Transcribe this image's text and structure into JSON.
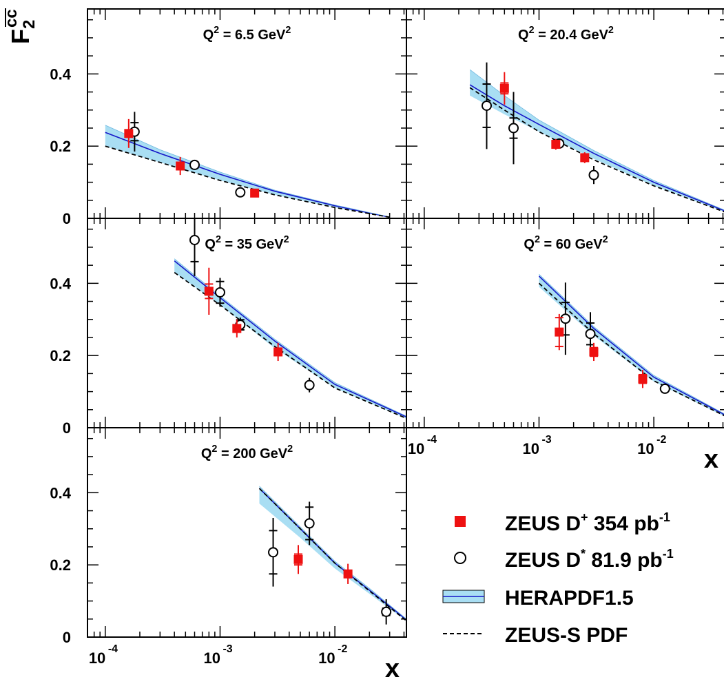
{
  "chart_data": {
    "type": "scatter",
    "x_scale": "log",
    "xlim": [
      7e-05,
      0.042
    ],
    "ylim": [
      0,
      0.58
    ],
    "ylabel_base": "F",
    "ylabel_sub": "2",
    "ylabel_sup": "cc",
    "xlabel": "x",
    "y_ticks": [
      {
        "value": 0,
        "label": "0"
      },
      {
        "value": 0.2,
        "label": "0.2"
      },
      {
        "value": 0.4,
        "label": "0.4"
      }
    ],
    "x_ticks": [
      {
        "value": 0.0001,
        "base": "10",
        "exp": "-4"
      },
      {
        "value": 0.001,
        "base": "10",
        "exp": "-3"
      },
      {
        "value": 0.01,
        "base": "10",
        "exp": "-2"
      }
    ],
    "legend": [
      {
        "key": "dplus",
        "label": "ZEUS D",
        "sup": "+",
        "tail": " 354 pb",
        "tail_sup": "-1"
      },
      {
        "key": "dstar",
        "label": "ZEUS D",
        "sup": "*",
        "tail": " 81.9 pb",
        "tail_sup": "-1"
      },
      {
        "key": "hera",
        "label": "HERAPDF1.5",
        "sup": "",
        "tail": "",
        "tail_sup": ""
      },
      {
        "key": "zeuss",
        "label": "ZEUS-S PDF",
        "sup": "",
        "tail": "",
        "tail_sup": ""
      }
    ],
    "colors": {
      "dplus": "#ee1111",
      "dstar": "#000000",
      "band_fill": "#a9def3",
      "band_line": "#1515c8",
      "zeuss": "#000000"
    },
    "panels": [
      {
        "title_pre": "Q",
        "title_sup": "2",
        "title_mid": " = 6.5 GeV",
        "title_sup2": "2",
        "hera": {
          "x": [
            0.0001,
            0.0003,
            0.001,
            0.003,
            0.01,
            0.03
          ],
          "center": [
            0.238,
            0.18,
            0.122,
            0.075,
            0.035,
            0.003
          ],
          "lower": [
            0.2,
            0.155,
            0.105,
            0.065,
            0.03,
            0.003
          ],
          "upper": [
            0.258,
            0.19,
            0.128,
            0.078,
            0.037,
            0.004
          ]
        },
        "zeuss": {
          "x": [
            0.0001,
            0.0003,
            0.001,
            0.003,
            0.01,
            0.03
          ],
          "y": [
            0.2,
            0.155,
            0.105,
            0.065,
            0.03,
            0.003
          ]
        },
        "dplus": [
          {
            "x": 0.00016,
            "y": 0.235,
            "stat": 0.01,
            "tot": 0.04
          },
          {
            "x": 0.00045,
            "y": 0.145,
            "stat": 0.01,
            "tot": 0.025
          },
          {
            "x": 0.002,
            "y": 0.07,
            "stat": 0.005,
            "tot": 0.01
          }
        ],
        "dstar": [
          {
            "x": 0.00018,
            "y": 0.24,
            "stat": 0.025,
            "tot": 0.055
          },
          {
            "x": 0.0006,
            "y": 0.148,
            "stat": 0.008,
            "tot": 0.01
          },
          {
            "x": 0.0015,
            "y": 0.072,
            "stat": 0.004,
            "tot": 0.006
          }
        ]
      },
      {
        "title_pre": "Q",
        "title_sup": "2",
        "title_mid": " = 20.4 GeV",
        "title_sup2": "2",
        "hera": {
          "x": [
            0.00025,
            0.0005,
            0.001,
            0.003,
            0.01,
            0.042
          ],
          "center": [
            0.37,
            0.312,
            0.26,
            0.18,
            0.1,
            0.02
          ],
          "lower": [
            0.34,
            0.288,
            0.24,
            0.165,
            0.09,
            0.017
          ],
          "upper": [
            0.412,
            0.34,
            0.272,
            0.188,
            0.105,
            0.022
          ]
        },
        "zeuss": {
          "x": [
            0.00025,
            0.0005,
            0.001,
            0.003,
            0.01,
            0.042
          ],
          "y": [
            0.362,
            0.3,
            0.24,
            0.162,
            0.09,
            0.017
          ]
        },
        "dplus": [
          {
            "x": 0.0005,
            "y": 0.36,
            "stat": 0.015,
            "tot": 0.045
          },
          {
            "x": 0.0014,
            "y": 0.205,
            "stat": 0.01,
            "tot": 0.015
          },
          {
            "x": 0.0025,
            "y": 0.168,
            "stat": 0.008,
            "tot": 0.015
          }
        ],
        "dstar": [
          {
            "x": 0.00035,
            "y": 0.312,
            "stat": 0.06,
            "tot": 0.12
          },
          {
            "x": 0.0006,
            "y": 0.25,
            "stat": 0.028,
            "tot": 0.1
          },
          {
            "x": 0.0015,
            "y": 0.207,
            "stat": 0.008,
            "tot": 0.014
          },
          {
            "x": 0.003,
            "y": 0.12,
            "stat": 0.006,
            "tot": 0.025
          }
        ]
      },
      {
        "title_pre": "Q",
        "title_sup": "2",
        "title_mid": " = 35 GeV",
        "title_sup2": "2",
        "hera": {
          "x": [
            0.0004,
            0.001,
            0.003,
            0.01,
            0.042
          ],
          "center": [
            0.462,
            0.36,
            0.24,
            0.12,
            0.03
          ],
          "lower": [
            0.43,
            0.34,
            0.22,
            0.11,
            0.025
          ],
          "upper": [
            0.468,
            0.365,
            0.245,
            0.125,
            0.032
          ]
        },
        "zeuss": {
          "x": [
            0.0004,
            0.001,
            0.003,
            0.01,
            0.042
          ],
          "y": [
            0.43,
            0.34,
            0.225,
            0.11,
            0.026
          ]
        },
        "dplus": [
          {
            "x": 0.0008,
            "y": 0.378,
            "stat": 0.02,
            "tot": 0.065
          },
          {
            "x": 0.0014,
            "y": 0.275,
            "stat": 0.01,
            "tot": 0.025
          },
          {
            "x": 0.0032,
            "y": 0.21,
            "stat": 0.01,
            "tot": 0.025
          }
        ],
        "dstar": [
          {
            "x": 0.0006,
            "y": 0.52,
            "stat": 0.06,
            "tot": 0.1
          },
          {
            "x": 0.001,
            "y": 0.375,
            "stat": 0.03,
            "tot": 0.04
          },
          {
            "x": 0.0015,
            "y": 0.285,
            "stat": 0.014,
            "tot": 0.02
          },
          {
            "x": 0.006,
            "y": 0.118,
            "stat": 0.006,
            "tot": 0.02
          }
        ]
      },
      {
        "title_pre": "Q",
        "title_sup": "2",
        "title_mid": " = 60 GeV",
        "title_sup2": "2",
        "hera": {
          "x": [
            0.001,
            0.003,
            0.01,
            0.042
          ],
          "center": [
            0.42,
            0.275,
            0.14,
            0.035
          ],
          "lower": [
            0.39,
            0.255,
            0.128,
            0.03
          ],
          "upper": [
            0.425,
            0.28,
            0.145,
            0.037
          ]
        },
        "zeuss": {
          "x": [
            0.001,
            0.003,
            0.01,
            0.042
          ],
          "y": [
            0.4,
            0.26,
            0.13,
            0.032
          ]
        },
        "dplus": [
          {
            "x": 0.0015,
            "y": 0.265,
            "stat": 0.04,
            "tot": 0.05
          },
          {
            "x": 0.003,
            "y": 0.21,
            "stat": 0.012,
            "tot": 0.025
          },
          {
            "x": 0.008,
            "y": 0.135,
            "stat": 0.012,
            "tot": 0.025
          }
        ],
        "dstar": [
          {
            "x": 0.0017,
            "y": 0.302,
            "stat": 0.045,
            "tot": 0.1
          },
          {
            "x": 0.0028,
            "y": 0.26,
            "stat": 0.03,
            "tot": 0.06
          },
          {
            "x": 0.0125,
            "y": 0.108,
            "stat": 0.005,
            "tot": 0.008
          }
        ]
      },
      {
        "title_pre": "Q",
        "title_sup": "2",
        "title_mid": " = 200 GeV",
        "title_sup2": "2",
        "hera": {
          "x": [
            0.0022,
            0.005,
            0.01,
            0.02,
            0.042
          ],
          "center": [
            0.412,
            0.3,
            0.205,
            0.13,
            0.048
          ],
          "lower": [
            0.37,
            0.275,
            0.19,
            0.12,
            0.044
          ],
          "upper": [
            0.418,
            0.305,
            0.21,
            0.135,
            0.05
          ]
        },
        "zeuss": {
          "x": [
            0.0022,
            0.005,
            0.01,
            0.02,
            0.042
          ],
          "y": [
            0.412,
            0.3,
            0.205,
            0.128,
            0.045
          ]
        },
        "dplus": [
          {
            "x": 0.0048,
            "y": 0.215,
            "stat": 0.015,
            "tot": 0.04
          },
          {
            "x": 0.013,
            "y": 0.175,
            "stat": 0.01,
            "tot": 0.028
          }
        ],
        "dstar": [
          {
            "x": 0.0029,
            "y": 0.235,
            "stat": 0.06,
            "tot": 0.095
          },
          {
            "x": 0.006,
            "y": 0.315,
            "stat": 0.045,
            "tot": 0.06
          },
          {
            "x": 0.028,
            "y": 0.07,
            "stat": 0.01,
            "tot": 0.035
          }
        ]
      }
    ]
  }
}
